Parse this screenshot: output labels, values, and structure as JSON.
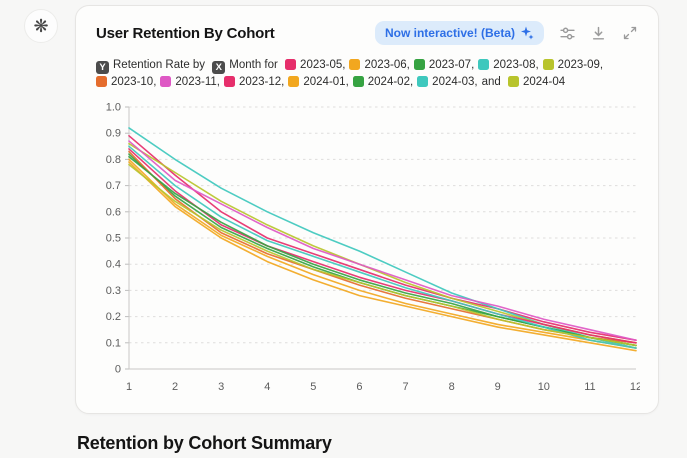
{
  "page": {
    "summary_heading": "Retention by Cohort Summary"
  },
  "avatar": {
    "icon": "openai-logo-icon"
  },
  "card": {
    "title": "User Retention By Cohort",
    "badge": {
      "label": "Now interactive! (Beta)",
      "icon": "sparkle-icon",
      "bg": "#dcebfb",
      "color": "#2e6fe6"
    },
    "toolbar": [
      {
        "icon": "sliders-icon"
      },
      {
        "icon": "download-icon"
      },
      {
        "icon": "expand-icon"
      }
    ]
  },
  "legend": {
    "y_badge": "Y",
    "y_label": "Retention Rate by",
    "x_badge": "X",
    "x_label": "Month for",
    "and_word": "and"
  },
  "chart_data": {
    "type": "line",
    "title": "User Retention By Cohort",
    "xlabel": "Month",
    "ylabel": "Retention Rate",
    "x": [
      "1",
      "2",
      "3",
      "4",
      "5",
      "6",
      "7",
      "8",
      "9",
      "10",
      "11",
      "12"
    ],
    "ylim": [
      0,
      1.0
    ],
    "ytick_labels": [
      "0",
      "0.1",
      "0.2",
      "0.3",
      "0.4",
      "0.5",
      "0.6",
      "0.7",
      "0.8",
      "0.9",
      "1.0"
    ],
    "grid": "dashed-horizontal",
    "legend_position": "top",
    "series": [
      {
        "name": "2023-05",
        "color": "#e62e6b",
        "values": [
          0.89,
          0.74,
          0.6,
          0.5,
          0.44,
          0.38,
          0.32,
          0.27,
          0.23,
          0.18,
          0.14,
          0.11
        ]
      },
      {
        "name": "2023-06",
        "color": "#f2a71f",
        "values": [
          0.79,
          0.62,
          0.5,
          0.41,
          0.34,
          0.28,
          0.24,
          0.2,
          0.16,
          0.13,
          0.1,
          0.07
        ]
      },
      {
        "name": "2023-07",
        "color": "#36a342",
        "values": [
          0.82,
          0.66,
          0.54,
          0.46,
          0.39,
          0.33,
          0.28,
          0.24,
          0.2,
          0.16,
          0.12,
          0.09
        ]
      },
      {
        "name": "2023-08",
        "color": "#3ec8bd",
        "values": [
          0.92,
          0.8,
          0.69,
          0.6,
          0.52,
          0.45,
          0.37,
          0.29,
          0.23,
          0.17,
          0.12,
          0.08
        ]
      },
      {
        "name": "2023-09",
        "color": "#b8c42c",
        "values": [
          0.86,
          0.75,
          0.64,
          0.55,
          0.47,
          0.4,
          0.33,
          0.27,
          0.22,
          0.17,
          0.13,
          0.1
        ]
      },
      {
        "name": "2023-10",
        "color": "#e56d2d",
        "values": [
          0.83,
          0.65,
          0.52,
          0.44,
          0.38,
          0.32,
          0.27,
          0.23,
          0.19,
          0.15,
          0.12,
          0.1
        ]
      },
      {
        "name": "2023-11",
        "color": "#de58c4",
        "values": [
          0.87,
          0.72,
          0.63,
          0.54,
          0.46,
          0.4,
          0.34,
          0.28,
          0.24,
          0.19,
          0.15,
          0.11
        ]
      },
      {
        "name": "2023-12",
        "color": "#e62e6b",
        "values": [
          0.84,
          0.68,
          0.55,
          0.47,
          0.41,
          0.35,
          0.3,
          0.26,
          0.21,
          0.17,
          0.13,
          0.1
        ]
      },
      {
        "name": "2024-01",
        "color": "#f2a71f",
        "values": [
          0.8,
          0.63,
          0.51,
          0.43,
          0.36,
          0.3,
          0.25,
          0.21,
          0.17,
          0.14,
          0.11,
          0.08
        ]
      },
      {
        "name": "2024-02",
        "color": "#36a342",
        "values": [
          0.81,
          0.67,
          0.56,
          0.47,
          0.4,
          0.34,
          0.29,
          0.25,
          0.2,
          0.16,
          0.12,
          0.09
        ]
      },
      {
        "name": "2024-03",
        "color": "#3ec8bd",
        "values": [
          0.85,
          0.7,
          0.58,
          0.49,
          0.43,
          0.37,
          0.31,
          0.26,
          0.21,
          0.16,
          0.11,
          0.08
        ]
      },
      {
        "name": "2024-04",
        "color": "#b8c42c",
        "values": [
          0.78,
          0.64,
          0.53,
          0.45,
          0.38,
          0.33,
          0.28,
          0.24,
          0.19,
          0.15,
          0.12,
          0.09
        ]
      }
    ]
  }
}
